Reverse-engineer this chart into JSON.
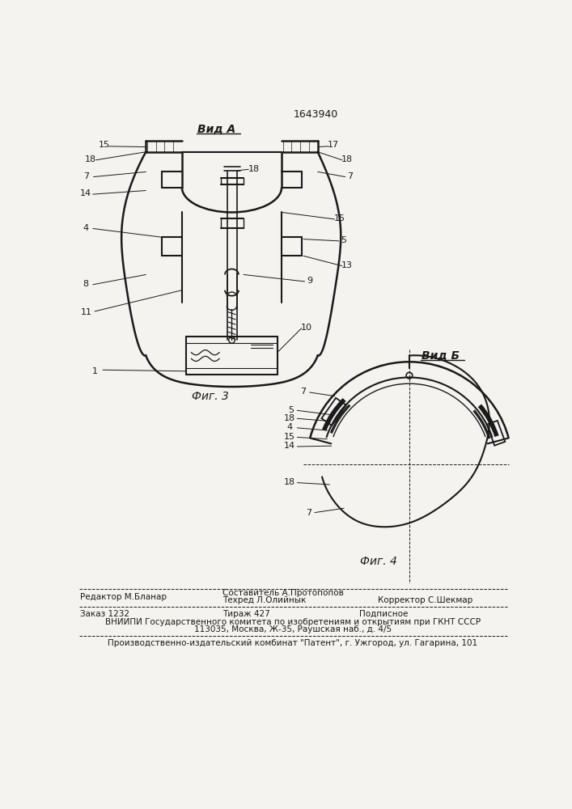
{
  "patent_number": "1643940",
  "fig3_label": "Фиг. 3",
  "fig4_label": "Фиг. 4",
  "view_a_label": "Вид А",
  "view_b_label": "Вид Б",
  "bg_color": "#f5f3ef",
  "line_color": "#1a1a1a",
  "footer2_col1": "Заказ 1232",
  "footer2_col2": "Тираж 427",
  "footer2_col3": "Подписное",
  "footer3": "ВНИИПИ Государственного комитета по изобретениям и открытиям при ГКНТ СССР",
  "footer4": "113035, Москва, Ж-35, Раушская наб., д. 4/5",
  "footer5": "Производственно-издательский комбинат \"Патент\", г. Ужгород, ул. Гагарина, 101"
}
